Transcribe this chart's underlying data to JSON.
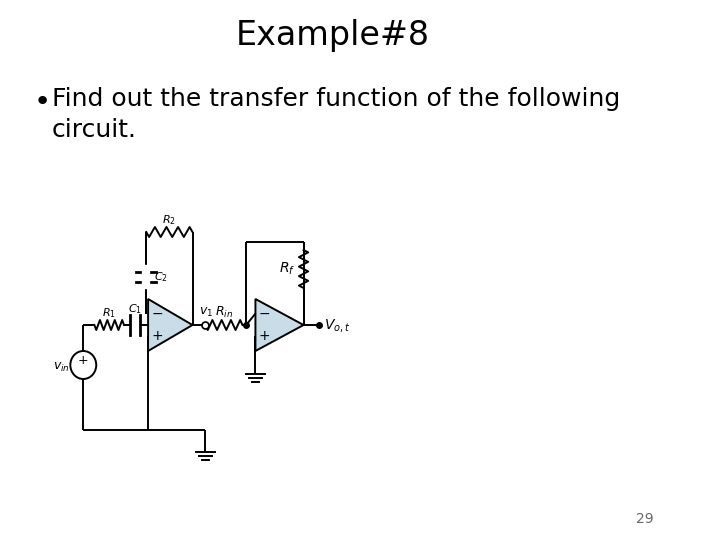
{
  "title": "Example#8",
  "bullet_line1": "Find out the transfer function of the following",
  "bullet_line2": "circuit.",
  "page_number": "29",
  "bg_color": "#ffffff",
  "title_fontsize": 24,
  "bullet_fontsize": 18,
  "page_num_fontsize": 10,
  "opamp_fill": "#c8dde8",
  "wire_color": "#000000",
  "wire_lw": 1.4
}
